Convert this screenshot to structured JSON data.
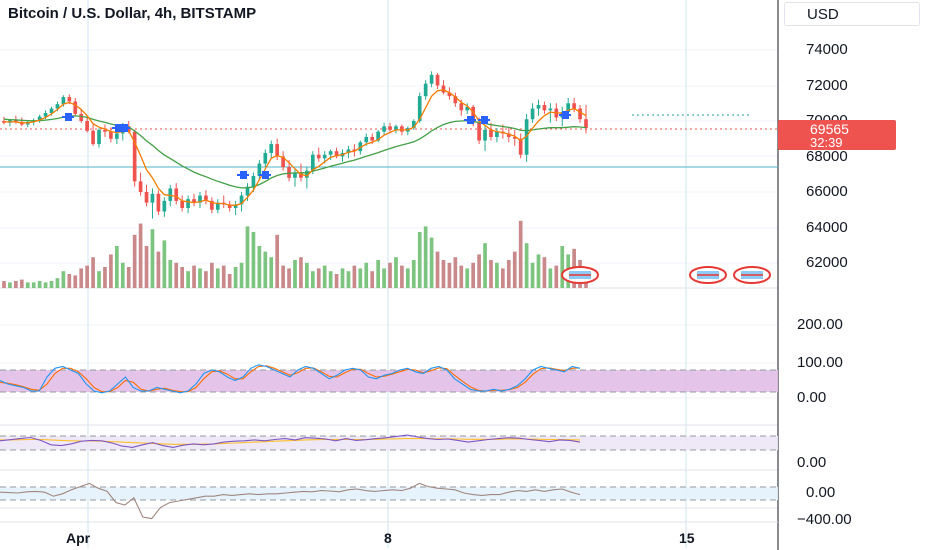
{
  "header": {
    "title": "Bitcoin / U.S. Dollar, 4h, BITSTAMP"
  },
  "currency_button": {
    "label": "USD"
  },
  "last_price": {
    "price": "69565",
    "countdown": "32:39",
    "color": "#ef5350"
  },
  "colors": {
    "up": "#26a69a",
    "up_candle": "#22ab94",
    "down": "#ef5350",
    "ma_fast": "#f57c00",
    "ma_slow": "#43a047",
    "vol_up": "#7cc47f",
    "vol_down": "#c9898a",
    "band_purple": "#e1bee7",
    "band_blue": "#e3f2fd",
    "stoch_k": "#2196f3",
    "stoch_d": "#ff6d00",
    "line_cci": "#7e57c2",
    "line_osc": "#a1887f"
  },
  "price_axis": {
    "labels": [
      "74000",
      "72000",
      "70000",
      "68000",
      "66000",
      "64000",
      "62000"
    ]
  },
  "osc1_axis": {
    "labels": [
      "200.00",
      "100.00",
      "0.00"
    ]
  },
  "osc2_axis": {
    "labels": [
      "0.00"
    ]
  },
  "osc3_axis": {
    "labels": [
      "0.00",
      "−400.00"
    ]
  },
  "time_axis": {
    "labels": [
      "Apr",
      "8",
      "15"
    ]
  },
  "chart_data": {
    "type": "candlestick",
    "title": "Bitcoin / U.S. Dollar, 4h, BITSTAMP",
    "ylim": [
      60800,
      75200
    ],
    "candles": [
      [
        70000,
        70250,
        69800,
        69900
      ],
      [
        69900,
        70100,
        69700,
        70050
      ],
      [
        70050,
        70300,
        69850,
        69950
      ],
      [
        69950,
        70200,
        69700,
        69800
      ],
      [
        69800,
        70050,
        69650,
        69950
      ],
      [
        69950,
        70150,
        69750,
        70050
      ],
      [
        70050,
        70350,
        69900,
        70250
      ],
      [
        70250,
        70600,
        70100,
        70450
      ],
      [
        70450,
        70800,
        70300,
        70700
      ],
      [
        70700,
        71100,
        70550,
        70950
      ],
      [
        70950,
        71450,
        70800,
        71350
      ],
      [
        71350,
        71500,
        70950,
        71100
      ],
      [
        71100,
        71300,
        70300,
        70400
      ],
      [
        70400,
        70700,
        69900,
        70000
      ],
      [
        70000,
        70250,
        69350,
        69450
      ],
      [
        69450,
        69800,
        68600,
        68700
      ],
      [
        68700,
        69600,
        68500,
        69500
      ],
      [
        69500,
        69800,
        69100,
        69400
      ],
      [
        69400,
        69650,
        68800,
        69000
      ],
      [
        69000,
        69500,
        68700,
        69300
      ],
      [
        69300,
        69900,
        68900,
        69700
      ],
      [
        69700,
        70000,
        69300,
        69400
      ],
      [
        69400,
        69500,
        66300,
        66600
      ],
      [
        66600,
        67100,
        65800,
        66000
      ],
      [
        66000,
        66400,
        65200,
        65400
      ],
      [
        65400,
        66200,
        64500,
        65900
      ],
      [
        65900,
        66100,
        64700,
        64900
      ],
      [
        64900,
        65700,
        64600,
        65500
      ],
      [
        65500,
        66400,
        65200,
        66200
      ],
      [
        66200,
        66500,
        65300,
        65500
      ],
      [
        65500,
        65800,
        64900,
        65100
      ],
      [
        65100,
        65800,
        64800,
        65600
      ],
      [
        65600,
        65900,
        65200,
        65400
      ],
      [
        65400,
        66000,
        65100,
        65800
      ],
      [
        65800,
        66100,
        65300,
        65500
      ],
      [
        65500,
        65700,
        64800,
        65000
      ],
      [
        65000,
        65600,
        64800,
        65400
      ],
      [
        65400,
        65800,
        65100,
        65300
      ],
      [
        65300,
        65500,
        64900,
        65100
      ],
      [
        65100,
        65500,
        64700,
        65300
      ],
      [
        65300,
        66000,
        64900,
        65800
      ],
      [
        65800,
        66500,
        65500,
        66300
      ],
      [
        66300,
        67100,
        66000,
        66900
      ],
      [
        66900,
        67800,
        66700,
        67600
      ],
      [
        67600,
        68400,
        67400,
        68200
      ],
      [
        68200,
        68900,
        67900,
        68700
      ],
      [
        68700,
        69000,
        67800,
        68000
      ],
      [
        68000,
        68300,
        67200,
        67400
      ],
      [
        67400,
        67800,
        66600,
        66800
      ],
      [
        66800,
        67300,
        66300,
        67100
      ],
      [
        67100,
        67600,
        66600,
        66800
      ],
      [
        66800,
        67400,
        66200,
        67200
      ],
      [
        67200,
        68300,
        67000,
        68100
      ],
      [
        68100,
        68500,
        67700,
        67900
      ],
      [
        67900,
        68300,
        67600,
        68100
      ],
      [
        68100,
        68400,
        67800,
        68300
      ],
      [
        68300,
        68500,
        67900,
        68000
      ],
      [
        68000,
        68400,
        67700,
        68200
      ],
      [
        68200,
        68600,
        67900,
        68400
      ],
      [
        68400,
        68700,
        68000,
        68300
      ],
      [
        68300,
        68900,
        68100,
        68800
      ],
      [
        68800,
        69300,
        68600,
        69100
      ],
      [
        69100,
        69300,
        68700,
        68900
      ],
      [
        68900,
        69500,
        68800,
        69400
      ],
      [
        69400,
        69900,
        69200,
        69700
      ],
      [
        69700,
        69900,
        69300,
        69500
      ],
      [
        69500,
        69800,
        69300,
        69700
      ],
      [
        69700,
        69800,
        69200,
        69400
      ],
      [
        69400,
        69700,
        69200,
        69600
      ],
      [
        69600,
        70100,
        69500,
        70000
      ],
      [
        70000,
        71600,
        69900,
        71400
      ],
      [
        71400,
        72300,
        71200,
        72100
      ],
      [
        72100,
        72800,
        71900,
        72600
      ],
      [
        72600,
        72700,
        71800,
        72000
      ],
      [
        72000,
        72300,
        71500,
        71600
      ],
      [
        71600,
        71900,
        71200,
        71400
      ],
      [
        71400,
        71600,
        70800,
        71000
      ],
      [
        71000,
        71200,
        70300,
        70600
      ],
      [
        70600,
        71000,
        70400,
        70800
      ],
      [
        70800,
        70900,
        69700,
        69900
      ],
      [
        69900,
        70200,
        68700,
        68900
      ],
      [
        68900,
        69700,
        68300,
        69500
      ],
      [
        69500,
        69900,
        68900,
        69100
      ],
      [
        69100,
        69600,
        68800,
        69400
      ],
      [
        69400,
        69800,
        69000,
        69300
      ],
      [
        69300,
        69600,
        68800,
        69100
      ],
      [
        69100,
        69500,
        68600,
        69000
      ],
      [
        69000,
        69300,
        67900,
        68100
      ],
      [
        68100,
        70400,
        67700,
        70100
      ],
      [
        70100,
        71000,
        69900,
        70700
      ],
      [
        70700,
        71200,
        70300,
        70900
      ],
      [
        70900,
        71100,
        70400,
        70600
      ],
      [
        70600,
        71000,
        69900,
        70700
      ],
      [
        70700,
        71000,
        70000,
        70200
      ],
      [
        70200,
        70800,
        69700,
        70500
      ],
      [
        70500,
        71300,
        70300,
        71000
      ],
      [
        71000,
        71300,
        70500,
        70700
      ],
      [
        70700,
        70900,
        69900,
        70100
      ],
      [
        70100,
        70900,
        69300,
        69600
      ]
    ],
    "volume": [
      5,
      4,
      5,
      6,
      4,
      4,
      5,
      4,
      5,
      7,
      12,
      10,
      9,
      14,
      16,
      22,
      12,
      15,
      24,
      30,
      18,
      15,
      38,
      46,
      30,
      42,
      26,
      34,
      20,
      18,
      15,
      12,
      16,
      14,
      12,
      18,
      14,
      16,
      10,
      15,
      18,
      44,
      40,
      30,
      26,
      22,
      38,
      16,
      14,
      20,
      22,
      18,
      12,
      14,
      16,
      12,
      10,
      14,
      12,
      16,
      14,
      18,
      12,
      20,
      14,
      18,
      22,
      16,
      14,
      20,
      40,
      44,
      36,
      26,
      20,
      18,
      22,
      16,
      14,
      18,
      24,
      32,
      20,
      18,
      14,
      20,
      26,
      48,
      32,
      18,
      24,
      22,
      14,
      16,
      30,
      24,
      28,
      20,
      12
    ],
    "ma_fast": [
      69950,
      69950,
      69950,
      69900,
      69900,
      69950,
      70050,
      70200,
      70400,
      70650,
      70950,
      71050,
      70900,
      70650,
      70300,
      69850,
      69650,
      69550,
      69400,
      69350,
      69400,
      69450,
      68800,
      68050,
      67250,
      66800,
      66200,
      65850,
      65800,
      65750,
      65500,
      65450,
      65400,
      65450,
      65550,
      65400,
      65350,
      65350,
      65250,
      65250,
      65350,
      65700,
      66100,
      66700,
      67300,
      67900,
      68050,
      67950,
      67650,
      67300,
      67000,
      66900,
      67250,
      67450,
      67700,
      67950,
      68050,
      68100,
      68250,
      68300,
      68500,
      68700,
      68800,
      68950,
      69200,
      69350,
      69500,
      69500,
      69500,
      69650,
      70100,
      70750,
      71400,
      71700,
      71750,
      71600,
      71350,
      71050,
      70850,
      70500,
      70000,
      69750,
      69500,
      69400,
      69350,
      69250,
      69150,
      68900,
      69150,
      69600,
      70000,
      70300,
      70500,
      70450,
      70450,
      70600,
      70700,
      70500,
      70300
    ],
    "ma_slow": [
      70100,
      70080,
      70060,
      70040,
      70020,
      70010,
      70020,
      70050,
      70090,
      70140,
      70220,
      70280,
      70290,
      70260,
      70200,
      70090,
      70000,
      69920,
      69830,
      69750,
      69700,
      69660,
      69440,
      69180,
      68880,
      68630,
      68340,
      68090,
      67880,
      67680,
      67470,
      67290,
      67120,
      66980,
      66860,
      66720,
      66600,
      66490,
      66380,
      66290,
      66230,
      66230,
      66290,
      66420,
      66590,
      66790,
      66930,
      67020,
      67060,
      67070,
      67080,
      67090,
      67180,
      67260,
      67350,
      67450,
      67540,
      67620,
      67720,
      67800,
      67900,
      68010,
      68110,
      68220,
      68340,
      68450,
      68560,
      68650,
      68730,
      68830,
      68990,
      69200,
      69440,
      69640,
      69800,
      69910,
      69980,
      70000,
      70020,
      69990,
      69910,
      69860,
      69790,
      69740,
      69690,
      69640,
      69580,
      69470,
      69460,
      69500,
      69550,
      69590,
      69620,
      69620,
      69620,
      69650,
      69680,
      69660,
      69630
    ],
    "stoch_k": [
      50,
      40,
      35,
      30,
      20,
      20,
      60,
      85,
      90,
      80,
      70,
      40,
      20,
      15,
      20,
      40,
      60,
      30,
      20,
      20,
      30,
      25,
      20,
      15,
      20,
      40,
      70,
      80,
      75,
      60,
      50,
      60,
      85,
      95,
      90,
      80,
      70,
      60,
      80,
      90,
      85,
      70,
      55,
      65,
      80,
      85,
      80,
      60,
      55,
      65,
      70,
      80,
      85,
      75,
      70,
      85,
      90,
      80,
      55,
      40,
      25,
      20,
      20,
      25,
      20,
      25,
      35,
      55,
      80,
      90,
      85,
      80,
      75,
      90,
      85
    ],
    "stoch_d": [
      45,
      42,
      38,
      32,
      25,
      22,
      40,
      70,
      85,
      85,
      75,
      55,
      30,
      18,
      18,
      30,
      50,
      45,
      25,
      20,
      25,
      28,
      22,
      18,
      18,
      30,
      55,
      75,
      78,
      68,
      55,
      55,
      75,
      90,
      92,
      85,
      75,
      65,
      72,
      85,
      86,
      75,
      62,
      60,
      72,
      82,
      82,
      70,
      60,
      62,
      68,
      75,
      82,
      80,
      72,
      78,
      86,
      84,
      65,
      48,
      32,
      22,
      20,
      22,
      22,
      24,
      30,
      45,
      68,
      84,
      86,
      82,
      78,
      85,
      86
    ],
    "cci": [
      10,
      15,
      20,
      25,
      12,
      -8,
      -12,
      -4,
      8,
      12,
      10,
      0,
      -14,
      -20,
      -8,
      2,
      -12,
      -20,
      -10,
      -4,
      -8,
      -4,
      4,
      8,
      10,
      14,
      10,
      16,
      20,
      14,
      24,
      22,
      18,
      10,
      20,
      12,
      15,
      20,
      24,
      30,
      36,
      28,
      20,
      16,
      18,
      12,
      4,
      10,
      16,
      20,
      24,
      22,
      16,
      12,
      6,
      14,
      12,
      4
    ],
    "cci_signal": [
      14,
      14,
      15,
      16,
      16,
      14,
      12,
      10,
      9,
      9,
      8,
      6,
      4,
      2,
      0,
      -2,
      -4,
      -6,
      -6,
      -6,
      -5,
      -4,
      -2,
      0,
      2,
      4,
      6,
      8,
      10,
      12,
      14,
      15,
      16,
      16,
      16,
      16,
      16,
      17,
      18,
      19,
      20,
      20,
      20,
      19,
      19,
      18,
      17,
      17,
      17,
      17,
      18,
      18,
      18,
      17,
      16,
      16,
      15,
      14
    ],
    "osc": [
      10,
      5,
      0,
      15,
      20,
      10,
      -40,
      -10,
      40,
      80,
      120,
      60,
      20,
      -120,
      -150,
      -60,
      -300,
      -320,
      -180,
      -120,
      -100,
      -80,
      -60,
      -40,
      -40,
      -20,
      -30,
      -20,
      -10,
      -20,
      -10,
      -10,
      0,
      10,
      20,
      15,
      30,
      25,
      15,
      40,
      50,
      30,
      20,
      30,
      40,
      30,
      60,
      120,
      80,
      60,
      50,
      40,
      0,
      -20,
      -30,
      -20,
      -20,
      10,
      30,
      20,
      40,
      20,
      40,
      50,
      10,
      -20
    ]
  }
}
